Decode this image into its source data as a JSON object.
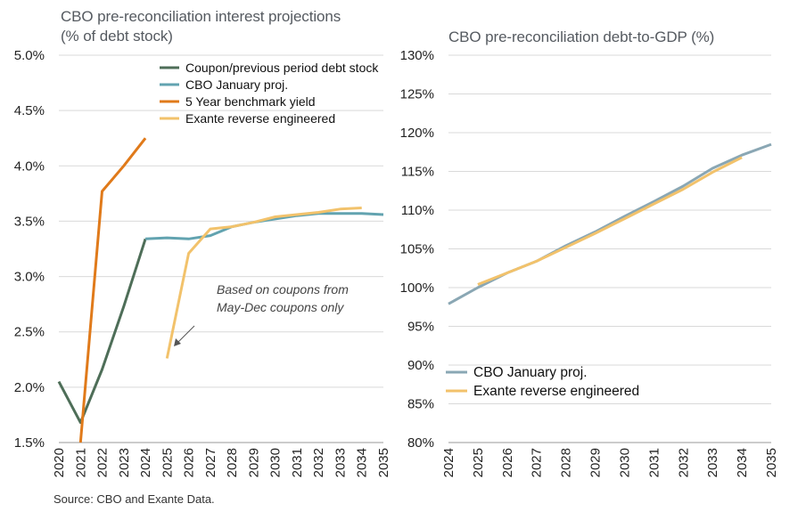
{
  "source": "Source: CBO and Exante Data.",
  "chart_data": [
    {
      "type": "line",
      "title_line1": "CBO pre-reconciliation interest projections",
      "title_line2": "(% of debt stock)",
      "x_ticks": [
        "2020",
        "2021",
        "2022",
        "2023",
        "2024",
        "2025",
        "2026",
        "2027",
        "2028",
        "2029",
        "2030",
        "2031",
        "2032",
        "2033",
        "2034",
        "2035"
      ],
      "y_ticks": [
        "5.0%",
        "4.5%",
        "4.0%",
        "3.5%",
        "3.0%",
        "2.5%",
        "2.0%",
        "1.5%"
      ],
      "xlim": [
        2020,
        2035
      ],
      "ylim": [
        1.5,
        5.0
      ],
      "annotation_line1": "Based on coupons from",
      "annotation_line2": "May-Dec coupons only",
      "series": [
        {
          "name": "Coupon/previous period debt stock",
          "color": "#4e6e58",
          "x": [
            2020,
            2021,
            2022,
            2023,
            2024
          ],
          "y": [
            2.05,
            1.68,
            2.16,
            2.73,
            3.34
          ]
        },
        {
          "name": "CBO January proj.",
          "color": "#62a3b0",
          "x": [
            2024,
            2025,
            2026,
            2027,
            2028,
            2029,
            2030,
            2031,
            2032,
            2033,
            2034,
            2035
          ],
          "y": [
            3.34,
            3.35,
            3.34,
            3.37,
            3.45,
            3.49,
            3.52,
            3.55,
            3.57,
            3.57,
            3.57,
            3.56
          ]
        },
        {
          "name": "5 Year benchmark yield",
          "color": "#e07a1a",
          "x": [
            2021,
            2022,
            2023,
            2024
          ],
          "y": [
            1.5,
            3.77,
            4.0,
            4.25
          ]
        },
        {
          "name": "Exante reverse engineered",
          "color": "#f2c26b",
          "x": [
            2025,
            2026,
            2027,
            2028,
            2029,
            2030,
            2031,
            2032,
            2033,
            2034
          ],
          "y": [
            2.26,
            3.21,
            3.43,
            3.45,
            3.49,
            3.54,
            3.56,
            3.58,
            3.61,
            3.62
          ]
        }
      ]
    },
    {
      "type": "line",
      "title": "CBO pre-reconciliation debt-to-GDP (%)",
      "x_ticks": [
        "2024",
        "2025",
        "2026",
        "2027",
        "2028",
        "2029",
        "2030",
        "2031",
        "2032",
        "2033",
        "2034",
        "2035"
      ],
      "y_ticks": [
        "130%",
        "125%",
        "120%",
        "115%",
        "110%",
        "105%",
        "100%",
        "95%",
        "90%",
        "85%",
        "80%"
      ],
      "xlim": [
        2024,
        2035
      ],
      "ylim": [
        80,
        130
      ],
      "series": [
        {
          "name": "CBO January proj.",
          "color": "#8aa7b4",
          "x": [
            2024,
            2025,
            2026,
            2027,
            2028,
            2029,
            2030,
            2031,
            2032,
            2033,
            2034,
            2035
          ],
          "y": [
            97.9,
            100.0,
            101.9,
            103.4,
            105.4,
            107.2,
            109.2,
            111.1,
            113.1,
            115.4,
            117.1,
            118.5
          ]
        },
        {
          "name": "Exante reverse engineered",
          "color": "#f2c26b",
          "x": [
            2025,
            2026,
            2027,
            2028,
            2029,
            2030,
            2031,
            2032,
            2033,
            2034
          ],
          "y": [
            100.4,
            101.9,
            103.4,
            105.2,
            107.0,
            108.9,
            110.8,
            112.7,
            114.9,
            116.8
          ]
        }
      ]
    }
  ]
}
